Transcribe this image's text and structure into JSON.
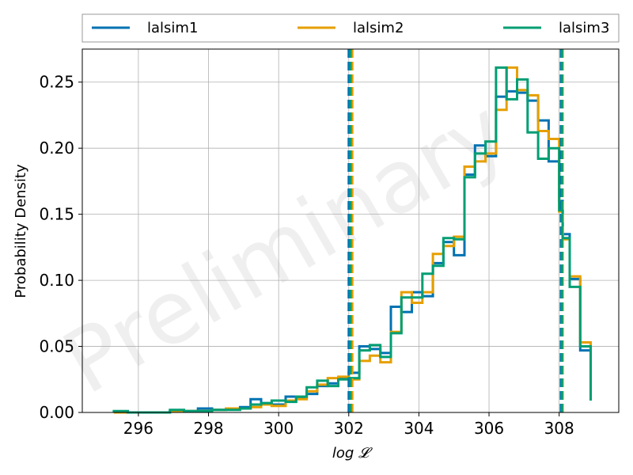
{
  "chart_data": {
    "type": "histogram",
    "xlabel": "log 𝓛",
    "ylabel": "Probability Density",
    "xlim": [
      294.4,
      309.7
    ],
    "ylim": [
      0,
      0.275
    ],
    "xticks": [
      296,
      298,
      300,
      302,
      304,
      306,
      308
    ],
    "yticks": [
      0.0,
      0.05,
      0.1,
      0.15,
      0.2,
      0.25
    ],
    "ytick_labels": [
      "0.00",
      "0.05",
      "0.10",
      "0.15",
      "0.20",
      "0.25"
    ],
    "grid": true,
    "legend": "top, outside, three columns",
    "watermark": "Preliminary",
    "series": [
      {
        "name": "lalsim1",
        "color": "#0072b2",
        "edges": [
          295.3,
          295.7,
          296.1,
          296.5,
          296.9,
          297.3,
          297.7,
          298.1,
          298.5,
          298.9,
          299.2,
          299.5,
          299.8,
          300.2,
          300.5,
          300.8,
          301.1,
          301.4,
          301.7,
          302.0,
          302.3,
          302.6,
          302.9,
          303.2,
          303.5,
          303.8,
          304.1,
          304.4,
          304.7,
          305.0,
          305.3,
          305.6,
          305.9,
          306.2,
          306.5,
          306.8,
          307.1,
          307.4,
          307.7,
          308.0,
          308.1,
          308.3,
          308.6,
          308.9
        ],
        "values": [
          0.0,
          0.0,
          0.0,
          0.0,
          0.001,
          0.001,
          0.003,
          0.002,
          0.003,
          0.004,
          0.01,
          0.007,
          0.006,
          0.012,
          0.011,
          0.014,
          0.02,
          0.022,
          0.026,
          0.03,
          0.05,
          0.048,
          0.045,
          0.08,
          0.076,
          0.091,
          0.088,
          0.113,
          0.129,
          0.119,
          0.18,
          0.202,
          0.194,
          0.239,
          0.243,
          0.242,
          0.236,
          0.221,
          0.19,
          0.16,
          0.135,
          0.101,
          0.047,
          0.013
        ]
      },
      {
        "name": "lalsim2",
        "color": "#e69f00",
        "edges": [
          295.3,
          295.7,
          296.1,
          296.5,
          296.9,
          297.3,
          297.7,
          298.1,
          298.5,
          298.9,
          299.2,
          299.5,
          299.8,
          300.2,
          300.5,
          300.8,
          301.1,
          301.4,
          301.7,
          302.0,
          302.3,
          302.6,
          302.9,
          303.2,
          303.5,
          303.8,
          304.1,
          304.4,
          304.7,
          305.0,
          305.3,
          305.6,
          305.9,
          306.2,
          306.5,
          306.8,
          307.1,
          307.4,
          307.7,
          308.0,
          308.1,
          308.3,
          308.6,
          308.9
        ],
        "values": [
          0.0,
          0.0,
          0.0,
          0.0,
          0.001,
          0.001,
          0.001,
          0.002,
          0.003,
          0.003,
          0.004,
          0.006,
          0.005,
          0.009,
          0.01,
          0.016,
          0.021,
          0.026,
          0.027,
          0.025,
          0.039,
          0.043,
          0.038,
          0.061,
          0.091,
          0.083,
          0.091,
          0.12,
          0.126,
          0.133,
          0.186,
          0.19,
          0.196,
          0.229,
          0.261,
          0.244,
          0.24,
          0.213,
          0.207,
          0.152,
          0.131,
          0.103,
          0.053,
          0.016
        ]
      },
      {
        "name": "lalsim3",
        "color": "#009e73",
        "edges": [
          295.3,
          295.7,
          296.1,
          296.5,
          296.9,
          297.3,
          297.7,
          298.1,
          298.5,
          298.9,
          299.2,
          299.5,
          299.8,
          300.2,
          300.5,
          300.8,
          301.1,
          301.4,
          301.7,
          302.0,
          302.3,
          302.6,
          302.9,
          303.2,
          303.5,
          303.8,
          304.1,
          304.4,
          304.7,
          305.0,
          305.3,
          305.6,
          305.9,
          306.2,
          306.5,
          306.8,
          307.1,
          307.4,
          307.7,
          308.0,
          308.1,
          308.3,
          308.6,
          308.9
        ],
        "values": [
          0.001,
          0.0,
          0.0,
          0.0,
          0.002,
          0.001,
          0.001,
          0.002,
          0.002,
          0.003,
          0.006,
          0.007,
          0.009,
          0.008,
          0.012,
          0.019,
          0.024,
          0.02,
          0.025,
          0.026,
          0.047,
          0.051,
          0.042,
          0.06,
          0.087,
          0.087,
          0.105,
          0.111,
          0.132,
          0.131,
          0.178,
          0.196,
          0.205,
          0.261,
          0.237,
          0.252,
          0.212,
          0.192,
          0.2,
          0.153,
          0.132,
          0.095,
          0.05,
          0.009
        ]
      }
    ],
    "vlines": [
      {
        "series": "lalsim1",
        "x": 302.0
      },
      {
        "series": "lalsim2",
        "x": 302.1
      },
      {
        "series": "lalsim3",
        "x": 302.05
      },
      {
        "series": "lalsim1",
        "x": 308.05
      },
      {
        "series": "lalsim2",
        "x": 308.1
      },
      {
        "series": "lalsim3",
        "x": 308.08
      }
    ]
  }
}
